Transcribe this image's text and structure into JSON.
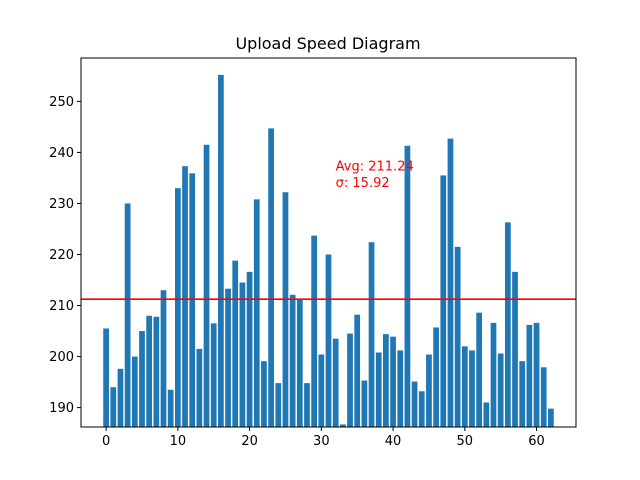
{
  "chart_data": {
    "type": "bar",
    "title": "Upload Speed Diagram",
    "xlabel": "",
    "ylabel": "",
    "x": [
      0,
      1,
      2,
      3,
      4,
      5,
      6,
      7,
      8,
      9,
      10,
      11,
      12,
      13,
      14,
      15,
      16,
      17,
      18,
      19,
      20,
      21,
      22,
      23,
      24,
      25,
      26,
      27,
      28,
      29,
      30,
      31,
      32,
      33,
      34,
      35,
      36,
      37,
      38,
      39,
      40,
      41,
      42,
      43,
      44,
      45,
      46,
      47,
      48,
      49,
      50,
      51,
      52,
      53,
      54,
      55,
      56,
      57,
      58,
      59,
      60,
      61,
      62
    ],
    "values": [
      205.5,
      194,
      197.6,
      230,
      200,
      205,
      208,
      207.8,
      213,
      193.5,
      233,
      237.3,
      235.9,
      201.5,
      241.5,
      206.5,
      255.2,
      213.3,
      218.8,
      214.5,
      216.6,
      230.8,
      199.1,
      244.7,
      194.8,
      232.2,
      212.1,
      211.3,
      194.8,
      223.7,
      200.4,
      220,
      203.5,
      186.7,
      204.5,
      208.2,
      195.3,
      222.4,
      200.8,
      204.4,
      203.9,
      201.2,
      241.3,
      195.1,
      193.2,
      200.4,
      205.7,
      235.5,
      242.7,
      221.5,
      202,
      201.2,
      208.6,
      191,
      206.6,
      200.6,
      226.3,
      216.6,
      199.1,
      206.2,
      206.6,
      197.9,
      189.8
    ],
    "bar_color": "#1f77b4",
    "xlim": [
      -3.5,
      65.5
    ],
    "ylim": [
      186.2,
      258.5
    ],
    "xticks": [
      0,
      10,
      20,
      30,
      40,
      50,
      60
    ],
    "yticks": [
      190,
      200,
      210,
      220,
      230,
      240,
      250
    ],
    "grid": false,
    "mean_line": {
      "value": 211.24,
      "color": "#ff0000"
    },
    "annotations": [
      {
        "text": "Avg: 211.24",
        "x": 32,
        "y": 236.5,
        "color": "#ff0000"
      },
      {
        "text": "σ: 15.92",
        "x": 32,
        "y": 233.2,
        "color": "#ff0000"
      }
    ]
  }
}
